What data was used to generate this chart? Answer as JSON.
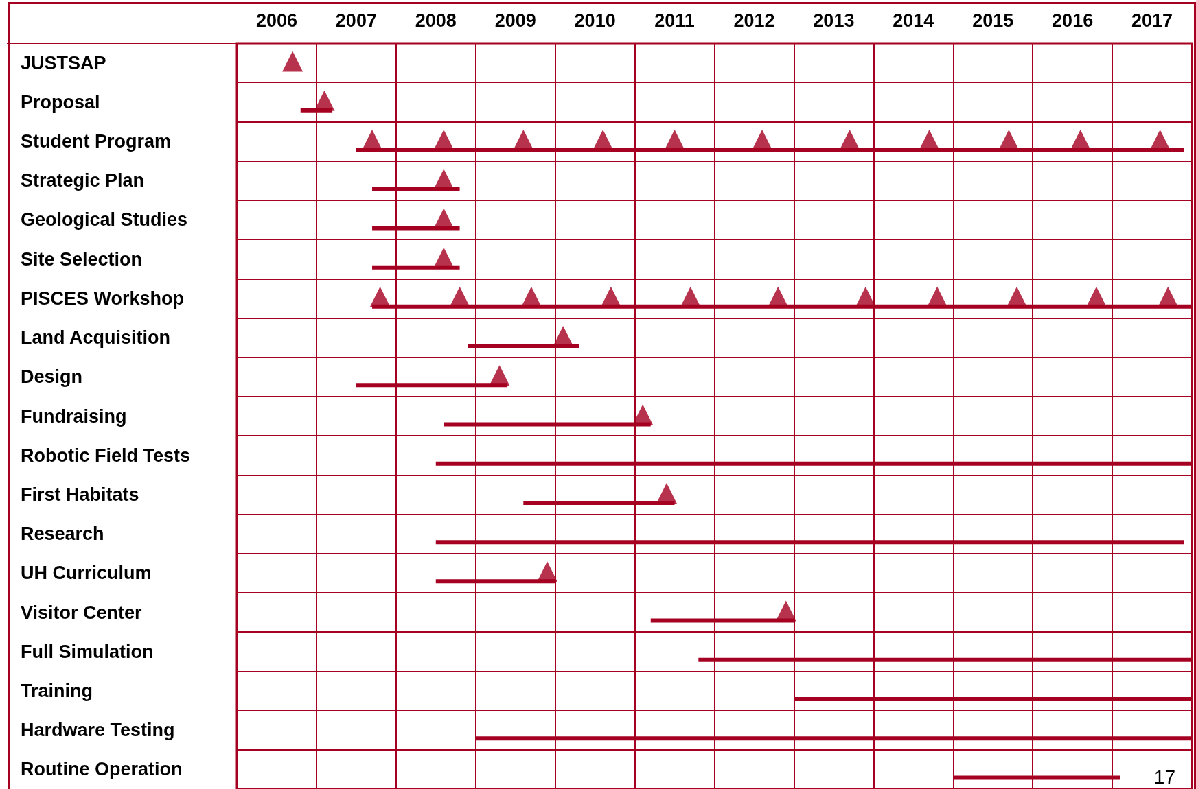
{
  "chart_data": {
    "type": "bar",
    "orientation": "horizontal",
    "grid": true,
    "categories": [
      "JUSTSAP",
      "Proposal",
      "Student Program",
      "Strategic Plan",
      "Geological Studies",
      "Site Selection",
      "PISCES Workshop",
      "Land Acquisition",
      "Design",
      "Fundraising",
      "Robotic Field Tests",
      "First Habitats",
      "Research",
      "UH Curriculum",
      "Visitor Center",
      "Full Simulation",
      "Training",
      "Hardware Testing",
      "Routine Operation"
    ],
    "xlim": [
      2006,
      2018
    ],
    "xticks": [
      {
        "value": 2006,
        "label": null
      },
      {
        "value": 2006.5,
        "label": "2006"
      },
      {
        "value": 2007,
        "label": null
      },
      {
        "value": 2007.5,
        "label": "2007"
      },
      {
        "value": 2008,
        "label": null
      },
      {
        "value": 2008.5,
        "label": "2008"
      },
      {
        "value": 2009,
        "label": null
      },
      {
        "value": 2009.5,
        "label": "2009"
      },
      {
        "value": 2010,
        "label": null
      },
      {
        "value": 2010.5,
        "label": "2010"
      },
      {
        "value": 2011,
        "label": null
      },
      {
        "value": 2011.5,
        "label": "2011"
      },
      {
        "value": 2012,
        "label": null
      },
      {
        "value": 2012.5,
        "label": "2012"
      },
      {
        "value": 2013,
        "label": null
      },
      {
        "value": 2013.5,
        "label": "2013"
      },
      {
        "value": 2014,
        "label": null
      },
      {
        "value": 2014.5,
        "label": "2014"
      },
      {
        "value": 2015,
        "label": null
      },
      {
        "value": 2015.5,
        "label": "2015"
      },
      {
        "value": 2016,
        "label": null
      },
      {
        "value": 2016.5,
        "label": "2016"
      },
      {
        "value": 2017,
        "label": null
      },
      {
        "value": 2017.5,
        "label": "2017"
      },
      {
        "value": 2018,
        "label": null
      }
    ],
    "series": [
      {
        "color": "#a50021",
        "base": [
          null,
          2006.8,
          2007.5,
          2007.7,
          2007.7,
          2007.7,
          2007.7,
          2008.9,
          2007.5,
          2008.6,
          2008.5,
          2009.6,
          2008.5,
          2008.5,
          2011.2,
          2011.8,
          2013.0,
          2009.0,
          2015.0
        ],
        "values": [
          null,
          0.4,
          10.4,
          1.1,
          1.1,
          1.1,
          10.3,
          1.4,
          1.9,
          2.6,
          9.5,
          1.9,
          9.4,
          1.5,
          1.8,
          6.2,
          5.0,
          9.0,
          2.1
        ]
      },
      {
        "type": "scatter",
        "color": "#a50021",
        "marker": "triangle",
        "x": [
          "JUSTSAP",
          "Proposal",
          "Student Program",
          "Student Program",
          "Student Program",
          "Student Program",
          "Student Program",
          "Student Program",
          "Student Program",
          "Student Program",
          "Student Program",
          "Student Program",
          "Student Program",
          "Strategic Plan",
          "Geological Studies",
          "Site Selection",
          "PISCES Workshop",
          "PISCES Workshop",
          "PISCES Workshop",
          "PISCES Workshop",
          "PISCES Workshop",
          "PISCES Workshop",
          "PISCES Workshop",
          "PISCES Workshop",
          "PISCES Workshop",
          "PISCES Workshop",
          "PISCES Workshop",
          "Land Acquisition",
          "Design",
          "Fundraising",
          "First Habitats",
          "UH Curriculum",
          "Visitor Center"
        ],
        "values": [
          2006.7,
          2007.1,
          2007.7,
          2008.6,
          2009.6,
          2010.6,
          2011.5,
          2012.6,
          2013.7,
          2014.7,
          2015.7,
          2016.6,
          2017.6,
          2008.6,
          2008.6,
          2008.6,
          2007.8,
          2008.8,
          2009.7,
          2010.7,
          2011.7,
          2012.8,
          2013.9,
          2014.8,
          2015.8,
          2016.8,
          2017.7,
          2010.1,
          2009.3,
          2011.1,
          2011.4,
          2009.9,
          2012.9
        ]
      }
    ],
    "annotations": [
      "17"
    ]
  }
}
